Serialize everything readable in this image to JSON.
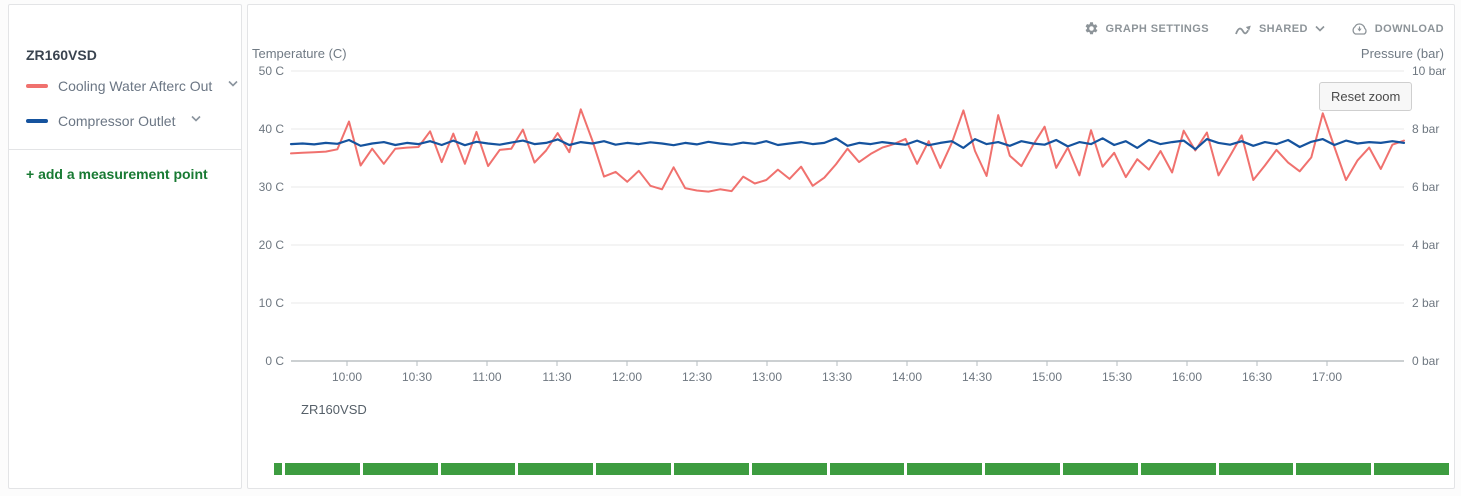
{
  "sidebar": {
    "title": "ZR160VSD",
    "legend": [
      {
        "label": "Cooling Water Afterc Out",
        "color": "#f0716e"
      },
      {
        "label": "Compressor Outlet",
        "color": "#15539e"
      }
    ],
    "add_link": "+ add a measurement point"
  },
  "toolbar": {
    "graph_settings": "GRAPH SETTINGS",
    "shared": "SHARED",
    "download": "DOWNLOAD"
  },
  "icons": {
    "settings": "gear-icon",
    "shared": "share-trend-icon",
    "shared_caret": "chevron-down-icon",
    "download": "cloud-download-icon",
    "legend_caret": "chevron-down-icon"
  },
  "chart": {
    "reset_zoom": "Reset zoom",
    "footer_label": "ZR160VSD"
  },
  "availability_bar": {
    "color": "#3d9c40",
    "segment_count": 16
  },
  "chart_data": {
    "type": "line",
    "title": "ZR160VSD",
    "x_hours_range": [
      9.6,
      17.55
    ],
    "x_ticks": [
      {
        "hour": 10.0,
        "label": "10:00"
      },
      {
        "hour": 10.5,
        "label": "10:30"
      },
      {
        "hour": 11.0,
        "label": "11:00"
      },
      {
        "hour": 11.5,
        "label": "11:30"
      },
      {
        "hour": 12.0,
        "label": "12:00"
      },
      {
        "hour": 12.5,
        "label": "12:30"
      },
      {
        "hour": 13.0,
        "label": "13:00"
      },
      {
        "hour": 13.5,
        "label": "13:30"
      },
      {
        "hour": 14.0,
        "label": "14:00"
      },
      {
        "hour": 14.5,
        "label": "14:30"
      },
      {
        "hour": 15.0,
        "label": "15:00"
      },
      {
        "hour": 15.5,
        "label": "15:30"
      },
      {
        "hour": 16.0,
        "label": "16:00"
      },
      {
        "hour": 16.5,
        "label": "16:30"
      },
      {
        "hour": 17.0,
        "label": "17:00"
      }
    ],
    "left_axis": {
      "label": "Temperature (C)",
      "range": [
        0,
        50
      ],
      "ticks": [
        {
          "value": 50,
          "label": "50 C"
        },
        {
          "value": 40,
          "label": "40 C"
        },
        {
          "value": 30,
          "label": "30 C"
        },
        {
          "value": 20,
          "label": "20 C"
        },
        {
          "value": 10,
          "label": "10 C"
        },
        {
          "value": 0,
          "label": "0 C"
        }
      ]
    },
    "right_axis": {
      "label": "Pressure (bar)",
      "range": [
        0,
        10
      ],
      "ticks": [
        {
          "value": 10,
          "label": "10 bar"
        },
        {
          "value": 8,
          "label": "8 bar"
        },
        {
          "value": 6,
          "label": "6 bar"
        },
        {
          "value": 4,
          "label": "4 bar"
        },
        {
          "value": 2,
          "label": "2 bar"
        },
        {
          "value": 0,
          "label": "0 bar"
        }
      ]
    },
    "grid": true,
    "grid_color": "#e8e8e8",
    "axis_line_color": "#9aa0a6",
    "series": [
      {
        "name": "Cooling Water Afterc Out",
        "axis": "left",
        "unit": "C",
        "color": "#f0716e",
        "stroke_width": 2,
        "values": [
          35.8,
          35.9,
          36.0,
          36.1,
          36.5,
          41.3,
          33.7,
          36.6,
          34.0,
          36.6,
          36.8,
          36.9,
          39.6,
          34.3,
          39.2,
          34.0,
          39.5,
          33.6,
          36.4,
          36.6,
          39.9,
          34.2,
          36.3,
          39.3,
          36.0,
          43.4,
          38.0,
          31.8,
          32.6,
          30.9,
          32.8,
          30.2,
          29.6,
          33.4,
          29.8,
          29.4,
          29.2,
          29.6,
          29.3,
          31.8,
          30.6,
          31.2,
          33.0,
          31.4,
          33.5,
          30.2,
          31.6,
          33.9,
          36.6,
          34.3,
          35.7,
          36.8,
          37.4,
          38.3,
          34.0,
          37.9,
          33.3,
          37.6,
          43.2,
          36.2,
          31.9,
          42.4,
          35.4,
          33.6,
          37.2,
          40.4,
          33.3,
          36.8,
          32.0,
          39.8,
          33.5,
          35.9,
          31.7,
          34.8,
          33.0,
          36.2,
          32.5,
          39.7,
          36.3,
          39.4,
          32.0,
          35.4,
          38.9,
          31.2,
          33.7,
          36.4,
          34.2,
          32.7,
          35.1,
          42.7,
          36.9,
          31.2,
          34.6,
          36.8,
          33.1,
          37.3,
          38.0
        ]
      },
      {
        "name": "Compressor Outlet",
        "axis": "right",
        "unit": "bar",
        "color": "#15539e",
        "stroke_width": 2.2,
        "values": [
          7.48,
          7.5,
          7.47,
          7.52,
          7.49,
          7.62,
          7.42,
          7.5,
          7.55,
          7.45,
          7.52,
          7.48,
          7.58,
          7.45,
          7.6,
          7.44,
          7.56,
          7.5,
          7.46,
          7.53,
          7.6,
          7.48,
          7.52,
          7.64,
          7.45,
          7.55,
          7.5,
          7.58,
          7.46,
          7.52,
          7.48,
          7.54,
          7.5,
          7.44,
          7.52,
          7.47,
          7.56,
          7.5,
          7.46,
          7.53,
          7.49,
          7.58,
          7.45,
          7.5,
          7.55,
          7.48,
          7.52,
          7.68,
          7.42,
          7.52,
          7.48,
          7.55,
          7.5,
          7.46,
          7.6,
          7.44,
          7.52,
          7.58,
          7.35,
          7.65,
          7.48,
          7.55,
          7.42,
          7.58,
          7.5,
          7.46,
          7.62,
          7.4,
          7.55,
          7.48,
          7.68,
          7.45,
          7.58,
          7.35,
          7.62,
          7.48,
          7.55,
          7.6,
          7.3,
          7.65,
          7.52,
          7.46,
          7.58,
          7.42,
          7.55,
          7.48,
          7.62,
          7.38,
          7.56,
          7.65,
          7.45,
          7.6,
          7.5,
          7.55,
          7.52,
          7.58,
          7.52
        ]
      }
    ]
  }
}
